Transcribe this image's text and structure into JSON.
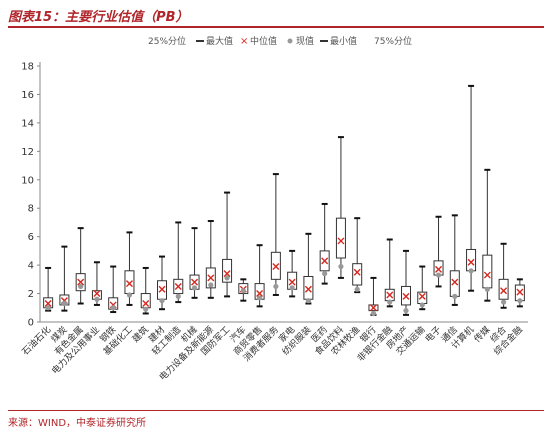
{
  "figure": {
    "title": "图表15：主要行业估值（PB）",
    "source": "来源：WIND，中泰证券研究所"
  },
  "legend": {
    "p25": "25%分位",
    "max": "最大值",
    "median": "中位值",
    "current": "现值",
    "min": "最小值",
    "p75": "75%分位"
  },
  "colors": {
    "box_border": "#333333",
    "median_marker": "#d6281f",
    "current_marker": "#999999",
    "accent": "#b0252a"
  },
  "chart_data": {
    "type": "box",
    "title": "",
    "xlabel": "",
    "ylabel": "",
    "ylim": [
      0,
      18
    ],
    "yticks": [
      0,
      2,
      4,
      6,
      8,
      10,
      12,
      14,
      16,
      18
    ],
    "grid": false,
    "legend_position": "top",
    "categories": [
      "石油石化",
      "煤炭",
      "有色金属",
      "电力及公用事业",
      "钢铁",
      "基础化工",
      "建筑",
      "建材",
      "轻工制造",
      "机械",
      "电力设备及新能源",
      "国防军工",
      "汽车",
      "商贸零售",
      "消费者服务",
      "家电",
      "纺织服装",
      "医药",
      "食品饮料",
      "农林牧渔",
      "银行",
      "非银行金融",
      "房地产",
      "交通运输",
      "电子",
      "通信",
      "计算机",
      "传媒",
      "综合",
      "综合金融"
    ],
    "series": [
      {
        "name": "最大值",
        "values": [
          3.8,
          5.3,
          6.6,
          4.2,
          3.9,
          6.3,
          3.8,
          4.6,
          7.0,
          6.6,
          7.1,
          9.1,
          3.0,
          5.4,
          10.4,
          5.0,
          6.2,
          8.3,
          13.0,
          7.3,
          3.1,
          5.8,
          5.0,
          3.9,
          7.4,
          7.5,
          16.6,
          10.7,
          5.5,
          3.0
        ]
      },
      {
        "name": "75%分位",
        "values": [
          1.7,
          1.9,
          3.4,
          2.2,
          1.7,
          3.6,
          2.0,
          2.9,
          3.0,
          3.3,
          3.8,
          4.4,
          2.7,
          2.7,
          4.9,
          3.5,
          3.2,
          5.0,
          7.3,
          4.1,
          1.2,
          2.3,
          2.5,
          2.1,
          4.3,
          3.6,
          5.1,
          4.7,
          3.0,
          2.6
        ]
      },
      {
        "name": "中位值",
        "values": [
          1.3,
          1.5,
          2.8,
          2.0,
          1.2,
          2.7,
          1.3,
          2.3,
          2.5,
          2.8,
          3.1,
          3.4,
          2.3,
          2.0,
          3.9,
          2.8,
          2.3,
          4.3,
          5.7,
          3.5,
          1.0,
          1.9,
          1.8,
          1.8,
          3.7,
          2.8,
          4.2,
          3.3,
          2.2,
          2.1
        ]
      },
      {
        "name": "25%分位",
        "values": [
          1.0,
          1.2,
          2.2,
          1.6,
          0.9,
          2.0,
          1.0,
          1.6,
          2.0,
          2.3,
          2.4,
          2.8,
          2.0,
          1.6,
          3.0,
          2.3,
          1.6,
          3.6,
          4.5,
          2.6,
          0.8,
          1.5,
          1.2,
          1.3,
          3.3,
          1.8,
          3.6,
          2.4,
          1.6,
          1.5
        ]
      },
      {
        "name": "最小值",
        "values": [
          0.8,
          0.8,
          1.3,
          1.2,
          0.7,
          1.2,
          0.6,
          0.9,
          1.4,
          1.7,
          1.7,
          1.8,
          1.5,
          1.1,
          1.9,
          1.8,
          1.3,
          2.7,
          3.1,
          2.1,
          0.5,
          1.1,
          0.5,
          0.9,
          2.5,
          1.2,
          2.2,
          1.5,
          1.0,
          1.1
        ]
      },
      {
        "name": "现值",
        "values": [
          1.0,
          1.3,
          2.5,
          1.6,
          1.0,
          1.9,
          0.9,
          1.5,
          1.8,
          2.4,
          2.6,
          3.1,
          2.2,
          1.7,
          2.5,
          2.4,
          1.5,
          3.4,
          3.9,
          2.3,
          0.6,
          1.4,
          0.8,
          1.2,
          3.3,
          1.8,
          3.6,
          2.3,
          1.4,
          1.5
        ]
      }
    ]
  }
}
